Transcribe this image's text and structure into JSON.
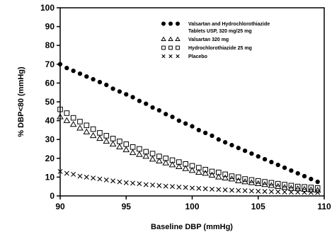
{
  "chart_data": {
    "type": "scatter",
    "xlabel": "Baseline DBP (mmHg)",
    "ylabel": "% DBP<80 (mmHg)",
    "xlim": [
      90,
      110
    ],
    "ylim": [
      0,
      100
    ],
    "x_ticks": [
      "90",
      "95",
      "100",
      "105",
      "110"
    ],
    "y_ticks": [
      "0",
      "10",
      "20",
      "30",
      "40",
      "50",
      "60",
      "70",
      "80",
      "90",
      "100"
    ],
    "grid": false,
    "legend_position": "top-right",
    "legend": [
      {
        "marker": "filled-circle",
        "lines": [
          "Valsartan and Hydrochlorothiazide",
          "Tablets USP, 320 mg/25 mg"
        ]
      },
      {
        "marker": "triangle",
        "lines": [
          "Valsartan 320 mg"
        ]
      },
      {
        "marker": "square",
        "lines": [
          "Hydrochlorothiazide 25 mg"
        ]
      },
      {
        "marker": "x",
        "lines": [
          "Placebo"
        ]
      }
    ],
    "series": [
      {
        "name": "Valsartan and Hydrochlorothiazide Tablets USP, 320 mg/25 mg",
        "marker": "filled-circle",
        "color": "#000000",
        "x": [
          90,
          90.5,
          91,
          91.5,
          92,
          92.5,
          93,
          93.5,
          94,
          94.5,
          95,
          95.5,
          96,
          96.5,
          97,
          97.5,
          98,
          98.5,
          99,
          99.5,
          100,
          100.5,
          101,
          101.5,
          102,
          102.5,
          103,
          103.5,
          104,
          104.5,
          105,
          105.5,
          106,
          106.5,
          107,
          107.5,
          108,
          108.5,
          109,
          109.5
        ],
        "y": [
          70,
          68,
          66.5,
          65,
          63.5,
          62,
          60.5,
          59,
          57,
          55.5,
          54,
          52.5,
          50.5,
          49,
          47,
          45.5,
          43.5,
          42,
          40,
          38.5,
          37,
          35,
          33.5,
          32,
          30,
          28.5,
          27,
          25.5,
          24,
          22.5,
          21,
          19.5,
          18,
          16.5,
          15,
          13.5,
          12,
          10.5,
          9,
          7.5
        ]
      },
      {
        "name": "Valsartan 320 mg",
        "marker": "triangle",
        "color": "#000000",
        "x": [
          90,
          90.5,
          91,
          91.5,
          92,
          92.5,
          93,
          93.5,
          94,
          94.5,
          95,
          95.5,
          96,
          96.5,
          97,
          97.5,
          98,
          98.5,
          99,
          99.5,
          100,
          100.5,
          101,
          101.5,
          102,
          102.5,
          103,
          103.5,
          104,
          104.5,
          105,
          105.5,
          106,
          106.5,
          107,
          107.5,
          108,
          108.5,
          109,
          109.5
        ],
        "y": [
          42,
          40,
          38,
          36,
          34,
          32,
          30.5,
          29,
          27.5,
          26,
          24.5,
          23,
          22,
          21,
          19.5,
          18.5,
          17.5,
          16.5,
          15.5,
          14.5,
          13.5,
          12.5,
          12,
          11,
          10,
          9.5,
          9,
          8,
          7.5,
          7,
          6.5,
          6,
          5.5,
          5,
          4.5,
          4,
          3.8,
          3.5,
          3.2,
          3
        ]
      },
      {
        "name": "Hydrochlorothiazide 25 mg",
        "marker": "square",
        "color": "#000000",
        "x": [
          90,
          90.5,
          91,
          91.5,
          92,
          92.5,
          93,
          93.5,
          94,
          94.5,
          95,
          95.5,
          96,
          96.5,
          97,
          97.5,
          98,
          98.5,
          99,
          99.5,
          100,
          100.5,
          101,
          101.5,
          102,
          102.5,
          103,
          103.5,
          104,
          104.5,
          105,
          105.5,
          106,
          106.5,
          107,
          107.5,
          108,
          108.5,
          109,
          109.5
        ],
        "y": [
          46,
          44,
          41.5,
          39.5,
          37.5,
          35.5,
          33.5,
          32,
          30.5,
          29,
          27.5,
          26,
          25,
          23.5,
          22.5,
          21,
          20,
          19,
          18,
          17,
          16,
          15,
          14,
          13,
          12.5,
          11.5,
          10.5,
          10,
          9,
          8.5,
          8,
          7.5,
          7,
          6.5,
          6,
          5.5,
          5,
          4.8,
          4.5,
          4.2
        ]
      },
      {
        "name": "Placebo",
        "marker": "x",
        "color": "#000000",
        "x": [
          90,
          90.5,
          91,
          91.5,
          92,
          92.5,
          93,
          93.5,
          94,
          94.5,
          95,
          95.5,
          96,
          96.5,
          97,
          97.5,
          98,
          98.5,
          99,
          99.5,
          100,
          100.5,
          101,
          101.5,
          102,
          102.5,
          103,
          103.5,
          104,
          104.5,
          105,
          105.5,
          106,
          106.5,
          107,
          107.5,
          108,
          108.5,
          109,
          109.5
        ],
        "y": [
          13,
          12,
          11.5,
          10.5,
          10,
          9.5,
          9,
          8.5,
          8,
          7.5,
          7,
          6.8,
          6.5,
          6,
          5.8,
          5.5,
          5.2,
          5,
          4.7,
          4.5,
          4.2,
          4,
          3.8,
          3.6,
          3.4,
          3.2,
          3,
          2.9,
          2.8,
          2.6,
          2.5,
          2.4,
          2.3,
          2.2,
          2.1,
          2,
          2,
          1.9,
          1.8,
          1.8
        ]
      }
    ]
  }
}
